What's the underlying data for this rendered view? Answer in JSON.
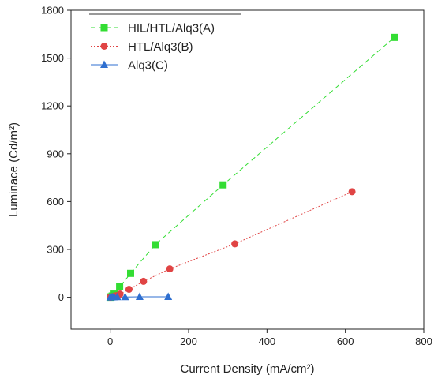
{
  "chart_data": {
    "type": "scatter",
    "title": "",
    "xlabel": "Current Density (mA/cm²)",
    "ylabel": "Luminace (Cd/m²)",
    "xlim": [
      -100,
      800
    ],
    "ylim": [
      -200,
      1800
    ],
    "xticks": [
      0,
      200,
      400,
      600,
      800
    ],
    "yticks": [
      0,
      300,
      600,
      900,
      1200,
      1500,
      1800
    ],
    "grid": false,
    "legend": "top-left",
    "series": [
      {
        "name": "HIL/HTL/Alq3(A)",
        "color": "#33dd33",
        "marker": "square",
        "line": "dashed",
        "x": [
          0,
          2,
          5,
          10,
          24,
          52,
          115,
          288,
          725
        ],
        "y": [
          0,
          3,
          8,
          20,
          65,
          150,
          330,
          705,
          1630
        ]
      },
      {
        "name": "HTL/Alq3(B)",
        "color": "#e04444",
        "marker": "circle",
        "line": "dotted",
        "x": [
          0,
          3,
          8,
          15,
          25,
          48,
          85,
          152,
          318,
          617
        ],
        "y": [
          0,
          2,
          5,
          10,
          20,
          50,
          100,
          178,
          335,
          662
        ]
      },
      {
        "name": "Alq3(C)",
        "color": "#2f6fd0",
        "marker": "triangle",
        "line": "solid",
        "x": [
          0,
          3,
          6,
          10,
          18,
          38,
          75,
          148
        ],
        "y": [
          0,
          0,
          1,
          1,
          2,
          2,
          3,
          3
        ]
      }
    ]
  }
}
